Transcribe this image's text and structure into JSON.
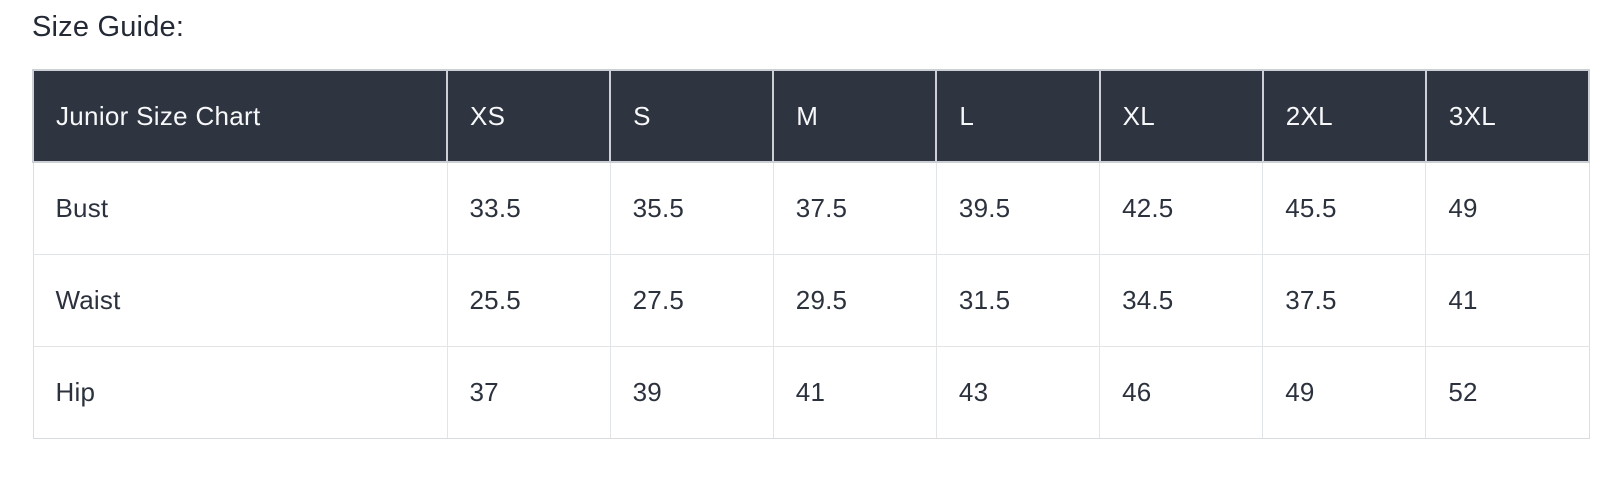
{
  "page": {
    "title": "Size Guide:"
  },
  "table": {
    "header": {
      "label": "Junior Size Chart",
      "sizes": [
        "XS",
        "S",
        "M",
        "L",
        "XL",
        "2XL",
        "3XL"
      ]
    },
    "rows": [
      {
        "label": "Bust",
        "values": [
          "33.5",
          "35.5",
          "37.5",
          "39.5",
          "42.5",
          "45.5",
          "49"
        ]
      },
      {
        "label": "Waist",
        "values": [
          "25.5",
          "27.5",
          "29.5",
          "31.5",
          "34.5",
          "37.5",
          "41"
        ]
      },
      {
        "label": "Hip",
        "values": [
          "37",
          "39",
          "41",
          "43",
          "46",
          "49",
          "52"
        ]
      }
    ]
  },
  "colors": {
    "header_bg": "#2e3440",
    "header_text": "#f7f8f9",
    "body_text": "#2c323d",
    "cell_border": "#e2e5e7",
    "header_border": "#ccd0d4",
    "background": "#ffffff"
  }
}
